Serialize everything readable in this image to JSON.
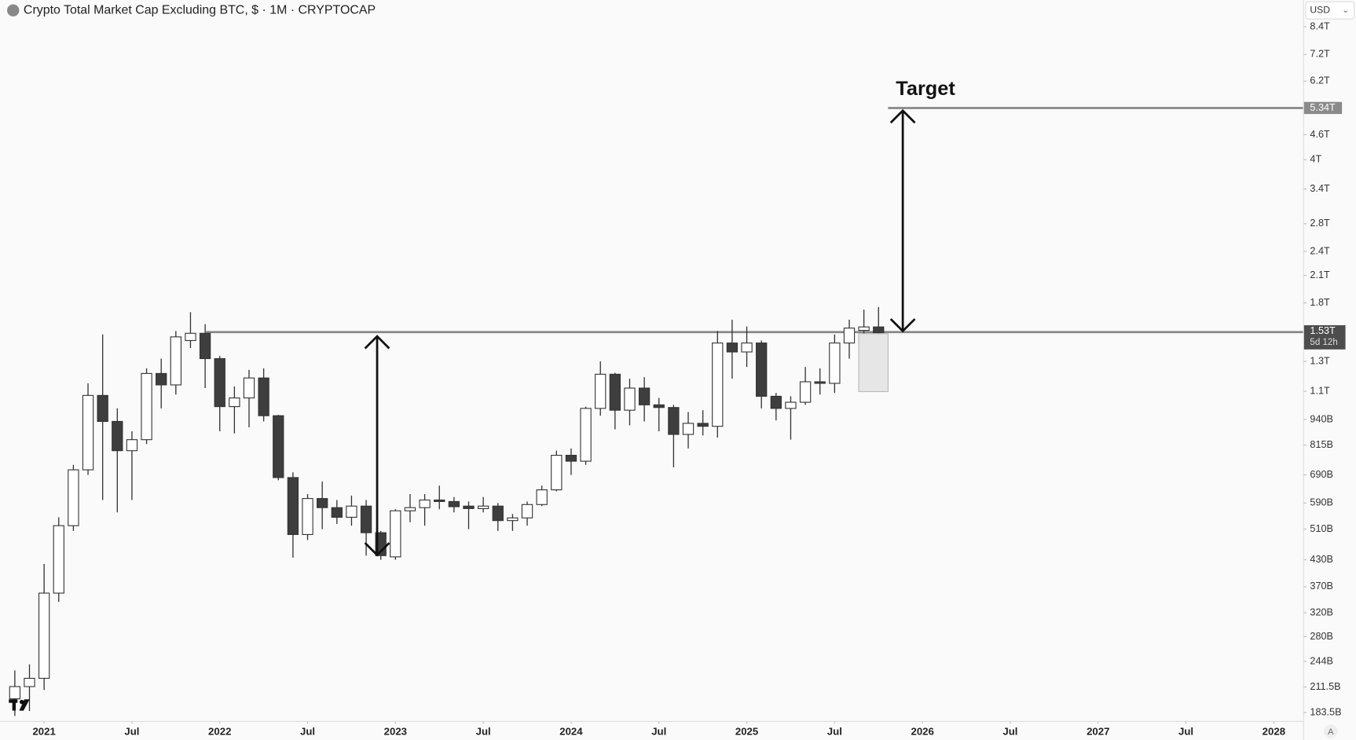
{
  "chart_data": {
    "type": "candlestick",
    "title": "Crypto Total Market Cap Excluding BTC, $ · 1M · CRYPTOCAP",
    "currency": "USD",
    "scale_mode": "A",
    "log_scale": true,
    "up_color": "#ffffff",
    "down_color": "#3e3e3e",
    "x": [
      "2020-11",
      "2020-12",
      "2021-01",
      "2021-02",
      "2021-03",
      "2021-04",
      "2021-05",
      "2021-06",
      "2021-07",
      "2021-08",
      "2021-09",
      "2021-10",
      "2021-11",
      "2021-12",
      "2022-01",
      "2022-02",
      "2022-03",
      "2022-04",
      "2022-05",
      "2022-06",
      "2022-07",
      "2022-08",
      "2022-09",
      "2022-10",
      "2022-11",
      "2022-12",
      "2023-01",
      "2023-02",
      "2023-03",
      "2023-04",
      "2023-05",
      "2023-06",
      "2023-07",
      "2023-08",
      "2023-09",
      "2023-10",
      "2023-11",
      "2023-12",
      "2024-01",
      "2024-02",
      "2024-03",
      "2024-04",
      "2024-05",
      "2024-06",
      "2024-07",
      "2024-08",
      "2024-09",
      "2024-10",
      "2024-11",
      "2024-12",
      "2025-01",
      "2025-02",
      "2025-03",
      "2025-04",
      "2025-05",
      "2025-06",
      "2025-07",
      "2025-08",
      "2025-09",
      "2025-10"
    ],
    "open": [
      198,
      212,
      222,
      357,
      520,
      710,
      1075,
      930,
      790,
      840,
      1215,
      1140,
      1460,
      1520,
      1320,
      1010,
      1060,
      1185,
      960,
      680,
      495,
      605,
      575,
      545,
      580,
      500,
      437,
      565,
      575,
      600,
      595,
      580,
      572,
      580,
      535,
      543,
      585,
      635,
      770,
      745,
      1000,
      1210,
      990,
      1120,
      1020,
      1005,
      865,
      920,
      905,
      1440,
      1370,
      1440,
      1070,
      1000,
      1035,
      1160,
      1150,
      1440,
      1545,
      1575
    ],
    "high": [
      232,
      240,
      420,
      545,
      730,
      1150,
      1510,
      1000,
      880,
      1250,
      1320,
      1540,
      1710,
      1600,
      1340,
      1130,
      1240,
      1250,
      965,
      700,
      620,
      665,
      600,
      615,
      600,
      505,
      570,
      620,
      620,
      650,
      610,
      595,
      610,
      590,
      555,
      595,
      650,
      790,
      800,
      1010,
      1300,
      1220,
      1180,
      1190,
      1060,
      1020,
      980,
      990,
      1540,
      1640,
      1580,
      1460,
      1090,
      1070,
      1260,
      1250,
      1510,
      1640,
      1735,
      1760
    ],
    "low": [
      180,
      185,
      208,
      340,
      505,
      690,
      600,
      560,
      600,
      820,
      1000,
      1080,
      1400,
      1120,
      880,
      870,
      900,
      930,
      670,
      435,
      480,
      510,
      525,
      520,
      440,
      430,
      430,
      530,
      520,
      570,
      560,
      510,
      560,
      505,
      505,
      520,
      580,
      630,
      690,
      730,
      960,
      890,
      910,
      930,
      880,
      720,
      800,
      860,
      850,
      1180,
      1260,
      1000,
      935,
      840,
      1020,
      1080,
      1090,
      1320,
      1440,
      1180
    ],
    "close": [
      212,
      222,
      357,
      520,
      710,
      1075,
      930,
      790,
      840,
      1215,
      1140,
      1490,
      1520,
      1320,
      1010,
      1060,
      1185,
      960,
      680,
      495,
      605,
      575,
      545,
      580,
      500,
      440,
      565,
      575,
      600,
      595,
      578,
      572,
      580,
      535,
      543,
      585,
      635,
      770,
      745,
      1000,
      1210,
      990,
      1120,
      1020,
      1005,
      865,
      920,
      905,
      1440,
      1370,
      1440,
      1070,
      1000,
      1035,
      1160,
      1150,
      1440,
      1565,
      1575,
      1525
    ],
    "xlim": [
      "2020-10",
      "2028-03"
    ],
    "xticks": [
      {
        "value": "2021-01",
        "label": "2021"
      },
      {
        "value": "2021-07",
        "label": "Jul"
      },
      {
        "value": "2022-01",
        "label": "2022"
      },
      {
        "value": "2022-07",
        "label": "Jul"
      },
      {
        "value": "2023-01",
        "label": "2023"
      },
      {
        "value": "2023-07",
        "label": "Jul"
      },
      {
        "value": "2024-01",
        "label": "2024"
      },
      {
        "value": "2024-07",
        "label": "Jul"
      },
      {
        "value": "2025-01",
        "label": "2025"
      },
      {
        "value": "2025-07",
        "label": "Jul"
      },
      {
        "value": "2026-01",
        "label": "2026"
      },
      {
        "value": "2026-07",
        "label": "Jul"
      },
      {
        "value": "2027-01",
        "label": "2027"
      },
      {
        "value": "2027-07",
        "label": "Jul"
      },
      {
        "value": "2028-01",
        "label": "2028"
      }
    ],
    "ylim": [
      175,
      9750
    ],
    "yticks": [
      {
        "value": 183.5,
        "label": "183.5B"
      },
      {
        "value": 211.5,
        "label": "211.5B"
      },
      {
        "value": 244,
        "label": "244B"
      },
      {
        "value": 280,
        "label": "280B"
      },
      {
        "value": 320,
        "label": "320B"
      },
      {
        "value": 370,
        "label": "370B"
      },
      {
        "value": 430,
        "label": "430B"
      },
      {
        "value": 510,
        "label": "510B"
      },
      {
        "value": 590,
        "label": "590B"
      },
      {
        "value": 690,
        "label": "690B"
      },
      {
        "value": 815,
        "label": "815B"
      },
      {
        "value": 940,
        "label": "940B"
      },
      {
        "value": 1100,
        "label": "1.1T"
      },
      {
        "value": 1300,
        "label": "1.3T"
      },
      {
        "value": 1800,
        "label": "1.8T"
      },
      {
        "value": 2100,
        "label": "2.1T"
      },
      {
        "value": 2400,
        "label": "2.4T"
      },
      {
        "value": 2800,
        "label": "2.8T"
      },
      {
        "value": 3400,
        "label": "3.4T"
      },
      {
        "value": 4000,
        "label": "4T"
      },
      {
        "value": 4600,
        "label": "4.6T"
      },
      {
        "value": 6200,
        "label": "6.2T"
      },
      {
        "value": 7200,
        "label": "7.2T"
      },
      {
        "value": 8400,
        "label": "8.4T"
      }
    ],
    "price_lines": [
      {
        "value": 1530,
        "label": "1.53T",
        "countdown": "5d 12h"
      },
      {
        "value": 5340,
        "label": "5.34T",
        "annotation": "Target"
      }
    ]
  }
}
